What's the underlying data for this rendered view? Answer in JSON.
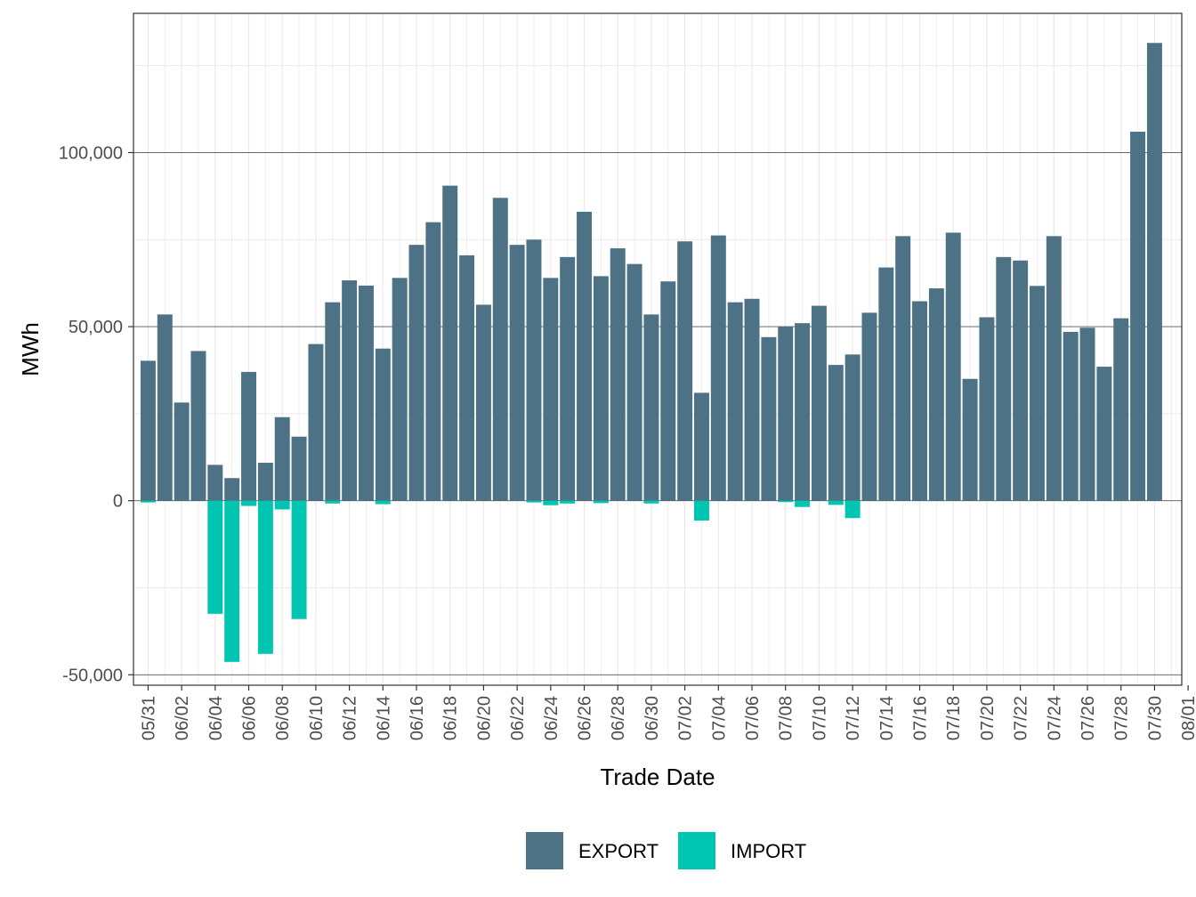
{
  "chart_data": {
    "type": "bar",
    "stacked": true,
    "xlabel": "Trade Date",
    "ylabel": "MWh",
    "ylim": [
      -53000,
      140000
    ],
    "y_ticks": [
      -50000,
      0,
      50000,
      100000
    ],
    "y_tick_labels": [
      "-50,000",
      "0",
      "50,000",
      "100,000"
    ],
    "grid": true,
    "legend_position": "bottom",
    "categories": [
      "05/31",
      "06/01",
      "06/02",
      "06/03",
      "06/04",
      "06/05",
      "06/06",
      "06/07",
      "06/08",
      "06/09",
      "06/10",
      "06/11",
      "06/12",
      "06/13",
      "06/14",
      "06/15",
      "06/16",
      "06/17",
      "06/18",
      "06/19",
      "06/20",
      "06/21",
      "06/22",
      "06/23",
      "06/24",
      "06/25",
      "06/26",
      "06/27",
      "06/28",
      "06/29",
      "06/30",
      "07/01",
      "07/02",
      "07/03",
      "07/04",
      "07/05",
      "07/06",
      "07/07",
      "07/08",
      "07/09",
      "07/10",
      "07/11",
      "07/12",
      "07/13",
      "07/14",
      "07/15",
      "07/16",
      "07/17",
      "07/18",
      "07/19",
      "07/20",
      "07/21",
      "07/22",
      "07/23",
      "07/24",
      "07/25",
      "07/26",
      "07/27",
      "07/28",
      "07/29",
      "07/30",
      "07/31",
      "08/01"
    ],
    "x_tick_labels": [
      "05/31",
      "06/02",
      "06/04",
      "06/06",
      "06/08",
      "06/10",
      "06/12",
      "06/14",
      "06/16",
      "06/18",
      "06/20",
      "06/22",
      "06/24",
      "06/26",
      "06/28",
      "06/30",
      "07/02",
      "07/04",
      "07/06",
      "07/08",
      "07/10",
      "07/12",
      "07/14",
      "07/16",
      "07/18",
      "07/20",
      "07/22",
      "07/24",
      "07/26",
      "07/28",
      "07/30",
      "08/01"
    ],
    "series": [
      {
        "name": "EXPORT",
        "color": "#4e7285",
        "values": [
          40200,
          53500,
          28200,
          43000,
          10300,
          6500,
          37000,
          10900,
          24000,
          18400,
          45000,
          57000,
          63300,
          61800,
          43700,
          64000,
          73500,
          80000,
          90500,
          70500,
          56300,
          87000,
          73500,
          75000,
          64000,
          70000,
          83000,
          64500,
          72500,
          68000,
          53500,
          63000,
          74500,
          31000,
          76200,
          57000,
          58000,
          47000,
          50000,
          51000,
          56000,
          39000,
          42000,
          54000,
          67000,
          76000,
          57300,
          61000,
          77000,
          35000,
          52700,
          70000,
          69000,
          61700,
          76000,
          48500,
          49700,
          38500,
          52400,
          106000,
          131500,
          0,
          0
        ]
      },
      {
        "name": "IMPORT",
        "color": "#00c5b0",
        "values": [
          -500,
          0,
          0,
          0,
          -32500,
          -46300,
          -1500,
          -44000,
          -2500,
          -34000,
          0,
          -800,
          0,
          0,
          -1000,
          0,
          0,
          0,
          0,
          0,
          0,
          0,
          0,
          -500,
          -1300,
          -800,
          0,
          -700,
          0,
          0,
          -800,
          0,
          0,
          -5700,
          0,
          0,
          0,
          0,
          -400,
          -1800,
          0,
          -1200,
          -5000,
          0,
          0,
          0,
          0,
          0,
          0,
          0,
          0,
          0,
          0,
          0,
          0,
          0,
          0,
          0,
          0,
          0,
          0,
          0,
          0
        ]
      }
    ]
  }
}
